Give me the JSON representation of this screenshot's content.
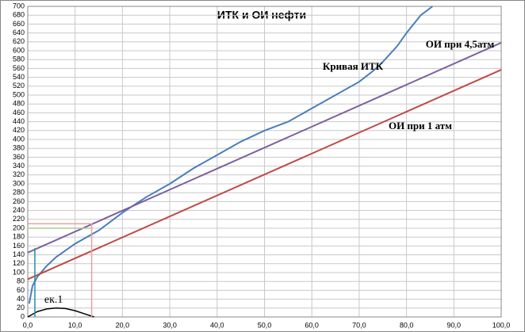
{
  "chart_data": {
    "type": "line",
    "title": "ИТК и ОИ нефти",
    "annotations": [
      "ек.1"
    ],
    "series": [
      {
        "name": "Кривая ИТК",
        "color": "#4a7ebb",
        "x": [
          0.3,
          1,
          2,
          4,
          6,
          10,
          15,
          20,
          25,
          30,
          35,
          40,
          45,
          50,
          55,
          60,
          65,
          70,
          73,
          75,
          78,
          80,
          83,
          85.5
        ],
        "values": [
          30,
          70,
          90,
          115,
          135,
          165,
          195,
          235,
          270,
          300,
          335,
          365,
          395,
          420,
          440,
          470,
          500,
          530,
          555,
          575,
          610,
          640,
          680,
          700
        ]
      },
      {
        "name": "ОИ при 4,5атм",
        "color": "#7d60a0",
        "x": [
          0,
          100
        ],
        "values": [
          145,
          618
        ]
      },
      {
        "name": "ОИ при 1 атм",
        "color": "#be4b48",
        "x": [
          0,
          100
        ],
        "values": [
          85,
          557
        ]
      },
      {
        "color": "#000000",
        "x": [
          0,
          2,
          4,
          6,
          8,
          10,
          12,
          14
        ],
        "values": [
          0,
          12,
          18,
          20,
          19,
          14,
          7,
          0
        ]
      },
      {
        "color": "#1f8fa8",
        "x": [
          1.5,
          1.5
        ],
        "values": [
          0,
          155
        ]
      },
      {
        "color": "#e8a0a0",
        "x": [
          0,
          13.5,
          13.5
        ],
        "values": [
          210,
          210,
          0
        ]
      },
      {
        "color": "#a8d08d",
        "x": [
          0,
          13.5
        ],
        "values": [
          200,
          200
        ]
      }
    ],
    "xlim": [
      0,
      100
    ],
    "xticks": [
      {
        "value": 0,
        "label": "0,0"
      },
      {
        "value": 10,
        "label": "10,0"
      },
      {
        "value": 20,
        "label": "20,0"
      },
      {
        "value": 30,
        "label": "30,0"
      },
      {
        "value": 40,
        "label": "40,0"
      },
      {
        "value": 50,
        "label": "50,0"
      },
      {
        "value": 60,
        "label": "60,0"
      },
      {
        "value": 70,
        "label": "70,0"
      },
      {
        "value": 80,
        "label": "80,0"
      },
      {
        "value": 90,
        "label": "90,0"
      },
      {
        "value": 100,
        "label": "100,0"
      }
    ],
    "ylim": [
      0,
      700
    ],
    "yticks": [
      0,
      20,
      40,
      60,
      80,
      100,
      120,
      140,
      160,
      180,
      200,
      220,
      240,
      260,
      280,
      300,
      320,
      340,
      360,
      380,
      400,
      420,
      440,
      460,
      480,
      500,
      520,
      540,
      560,
      580,
      600,
      620,
      640,
      660,
      680,
      700
    ],
    "grid": true
  }
}
